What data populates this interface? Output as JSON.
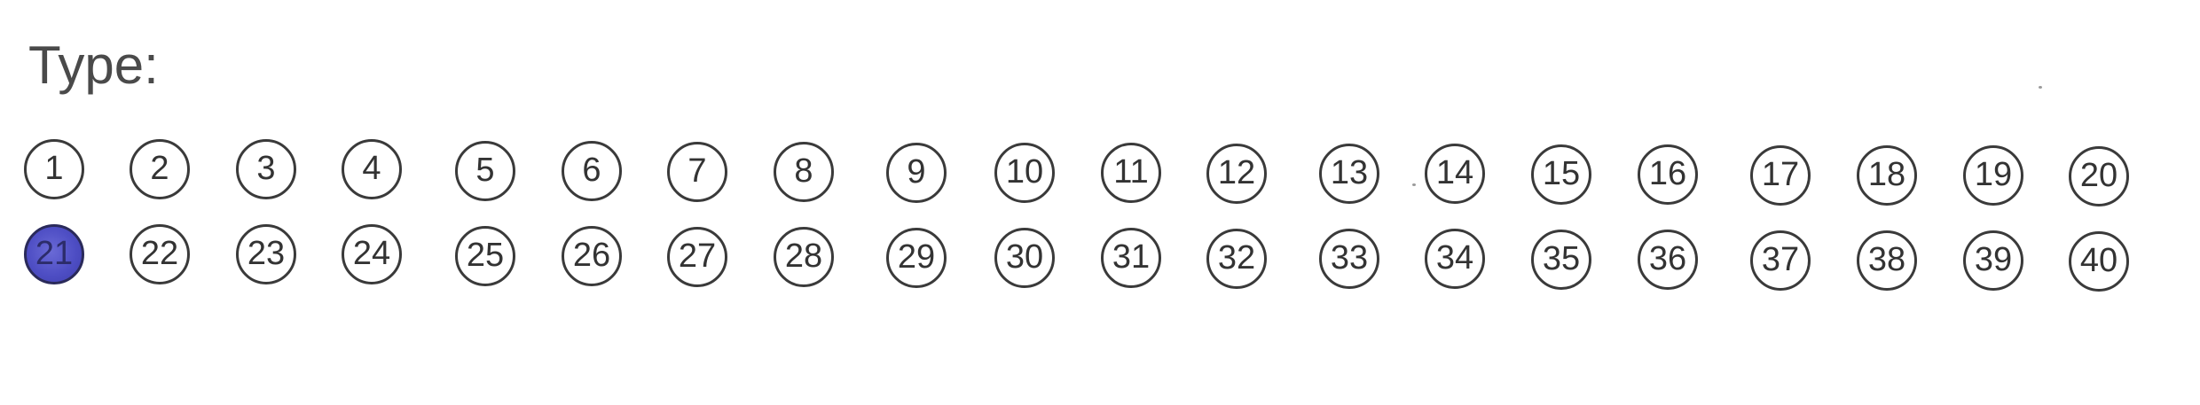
{
  "form": {
    "label": "Type:",
    "selected": "21",
    "rows": [
      [
        "1",
        "2",
        "3",
        "4",
        "5",
        "6",
        "7",
        "8",
        "9",
        "10",
        "11",
        "12",
        "13",
        "14",
        "15",
        "16",
        "17",
        "18",
        "19",
        "20"
      ],
      [
        "21",
        "22",
        "23",
        "24",
        "25",
        "26",
        "27",
        "28",
        "29",
        "30",
        "31",
        "32",
        "33",
        "34",
        "35",
        "36",
        "37",
        "38",
        "39",
        "40"
      ]
    ]
  },
  "colors": {
    "fill": "#4e4ec4",
    "outline": "#3a3a3a",
    "text": "#333333"
  }
}
